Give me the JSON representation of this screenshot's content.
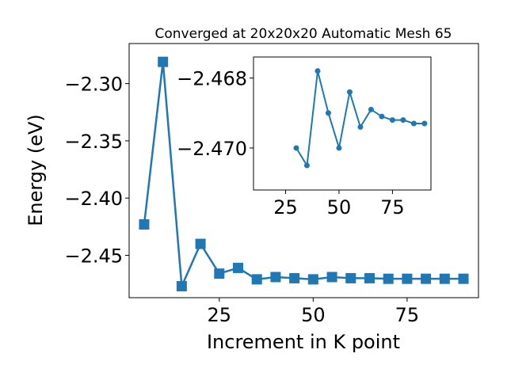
{
  "chart_data": [
    {
      "type": "line",
      "title": "Converged at 20x20x20 Automatic Mesh 65",
      "xlabel": "Increment in K point",
      "ylabel": "Energy (eV)",
      "xlim": [
        1,
        94
      ],
      "ylim": [
        -2.487,
        -2.265
      ],
      "x_ticks": [
        25,
        50,
        75
      ],
      "x_tick_labels": [
        "25",
        "50",
        "75"
      ],
      "y_ticks": [
        -2.3,
        -2.35,
        -2.4,
        -2.45
      ],
      "y_tick_labels": [
        "−2.30",
        "−2.35",
        "−2.40",
        "−2.45"
      ],
      "grid": false,
      "marker": "square",
      "color": "#1f77b4",
      "series": [
        {
          "x": [
            5,
            10,
            15,
            20,
            25,
            30,
            35,
            40,
            45,
            50,
            55,
            60,
            65,
            70,
            75,
            80,
            85,
            90
          ],
          "values": [
            -2.423,
            -2.281,
            -2.477,
            -2.44,
            -2.466,
            -2.461,
            -2.471,
            -2.469,
            -2.47,
            -2.471,
            -2.469,
            -2.47,
            -2.47,
            -2.4705,
            -2.4705,
            -2.4705,
            -2.4705,
            -2.4705
          ]
        }
      ]
    },
    {
      "type": "line",
      "title": "",
      "xlabel": "",
      "ylabel": "",
      "xlim": [
        10,
        93
      ],
      "ylim": [
        -2.4712,
        -2.4674
      ],
      "x_ticks": [
        25,
        50,
        75
      ],
      "x_tick_labels": [
        "25",
        "50",
        "75"
      ],
      "y_ticks": [
        -2.47,
        -2.468
      ],
      "y_tick_labels": [
        "−2.470",
        "−2.468"
      ],
      "grid": false,
      "marker": "circle",
      "color": "#1f77b4",
      "series": [
        {
          "x": [
            30,
            35,
            40,
            45,
            50,
            55,
            60,
            65,
            70,
            75,
            80,
            85,
            90
          ],
          "values": [
            -2.47,
            -2.4705,
            -2.4678,
            -2.469,
            -2.47,
            -2.4684,
            -2.4694,
            -2.4689,
            -2.4691,
            -2.4692,
            -2.4692,
            -2.4693,
            -2.4693
          ]
        }
      ]
    }
  ]
}
